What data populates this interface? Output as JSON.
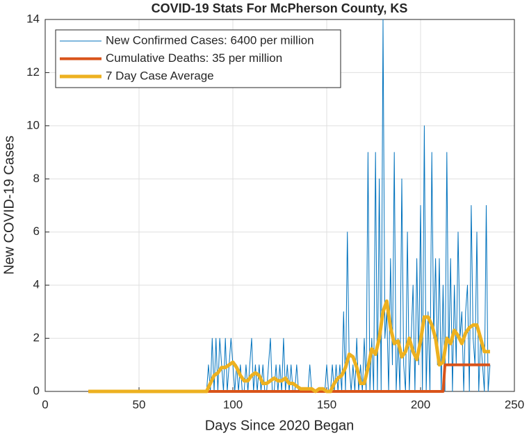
{
  "chart_data": {
    "type": "line",
    "title": "COVID-19 Stats For McPherson County, KS",
    "xlabel": "Days Since 2020 Began",
    "ylabel": "New COVID-19 Cases",
    "xlim": [
      0,
      250
    ],
    "xticks": [
      0,
      50,
      100,
      150,
      200,
      250
    ],
    "ylim": [
      0,
      14
    ],
    "yticks": [
      0,
      2,
      4,
      6,
      8,
      10,
      12,
      14
    ],
    "grid": true,
    "legend": "upper left",
    "series": [
      {
        "name": "New Confirmed Cases: 6400 per million",
        "color": "#0072BD",
        "width": 1,
        "x": [
          23,
          86,
          87,
          88,
          89,
          90,
          91,
          92,
          93,
          94,
          95,
          96,
          97,
          98,
          99,
          100,
          101,
          102,
          103,
          104,
          105,
          106,
          107,
          108,
          109,
          110,
          111,
          112,
          113,
          114,
          115,
          116,
          117,
          118,
          119,
          120,
          121,
          122,
          123,
          124,
          125,
          126,
          127,
          128,
          129,
          130,
          131,
          132,
          133,
          134,
          135,
          136,
          137,
          138,
          139,
          140,
          141,
          142,
          143,
          144,
          145,
          146,
          147,
          148,
          149,
          150,
          151,
          152,
          153,
          154,
          155,
          156,
          157,
          158,
          159,
          160,
          161,
          162,
          163,
          164,
          165,
          166,
          167,
          168,
          169,
          170,
          171,
          172,
          173,
          174,
          175,
          176,
          177,
          178,
          179,
          180,
          181,
          182,
          183,
          184,
          185,
          186,
          187,
          188,
          189,
          190,
          191,
          192,
          193,
          194,
          195,
          196,
          197,
          198,
          199,
          200,
          201,
          202,
          203,
          204,
          205,
          206,
          207,
          208,
          209,
          210,
          211,
          212,
          213,
          214,
          215,
          216,
          217,
          218,
          219,
          220,
          221,
          222,
          223,
          224,
          225,
          226,
          227,
          228,
          229,
          230,
          231,
          232,
          233,
          234,
          235,
          236,
          237
        ],
        "values": [
          0,
          0,
          1,
          0,
          2,
          0,
          2,
          0,
          2,
          1,
          0,
          2,
          0,
          1,
          2,
          1,
          0,
          1,
          0,
          1,
          0,
          0,
          1,
          0,
          1,
          2,
          0,
          1,
          0,
          1,
          0,
          1,
          0,
          0,
          1,
          2,
          0,
          0,
          1,
          0,
          1,
          0,
          2,
          0,
          1,
          0,
          1,
          0,
          0,
          1,
          0,
          0,
          0,
          0,
          0,
          0,
          1,
          0,
          0,
          0,
          0,
          0,
          0,
          0,
          0,
          1,
          0,
          0,
          1,
          0,
          1,
          0,
          1,
          0,
          3,
          0,
          6,
          1,
          0,
          1,
          0,
          2,
          0,
          1,
          0,
          2,
          0,
          9,
          0,
          2,
          0,
          9,
          0,
          8,
          0,
          14,
          2,
          3,
          0,
          5,
          1,
          9,
          0,
          2,
          0,
          8,
          1,
          0,
          6,
          0,
          2,
          4,
          0,
          5,
          1,
          7,
          0,
          10,
          0,
          3,
          0,
          9,
          2,
          5,
          1,
          5,
          0,
          4,
          0,
          9,
          1,
          5,
          0,
          4,
          1,
          6,
          2,
          3,
          0,
          3,
          4,
          0,
          7,
          2,
          1,
          6,
          0,
          2,
          1,
          0,
          7,
          0,
          1
        ]
      },
      {
        "name": "Cumulative Deaths: 35 per million",
        "color": "#D95319",
        "width": 4,
        "x": [
          23,
          212,
          213,
          237
        ],
        "values": [
          0,
          0,
          1,
          1
        ]
      },
      {
        "name": "7 Day Case Average",
        "color": "#EDB120",
        "width": 5,
        "x": [
          23,
          86,
          88,
          90,
          92,
          94,
          96,
          98,
          100,
          102,
          104,
          106,
          108,
          110,
          112,
          114,
          116,
          118,
          120,
          122,
          124,
          126,
          128,
          130,
          132,
          134,
          136,
          138,
          140,
          142,
          144,
          146,
          148,
          150,
          152,
          154,
          156,
          158,
          160,
          162,
          164,
          166,
          168,
          170,
          172,
          174,
          176,
          178,
          180,
          182,
          184,
          186,
          188,
          190,
          192,
          194,
          196,
          198,
          200,
          202,
          204,
          206,
          208,
          210,
          212,
          214,
          216,
          218,
          220,
          222,
          224,
          226,
          228,
          230,
          232,
          234,
          236,
          237
        ],
        "values": [
          0,
          0,
          0.3,
          0.6,
          0.7,
          0.9,
          0.9,
          1.0,
          1.1,
          0.9,
          0.6,
          0.4,
          0.4,
          0.6,
          0.7,
          0.6,
          0.3,
          0.3,
          0.4,
          0.5,
          0.4,
          0.4,
          0.5,
          0.3,
          0.3,
          0.2,
          0.1,
          0.1,
          0.1,
          0.1,
          0,
          0.1,
          0.1,
          0,
          0,
          0.3,
          0.5,
          0.6,
          0.9,
          1.4,
          1.3,
          0.9,
          0.3,
          0.3,
          0.9,
          1.6,
          1.4,
          2.0,
          3.0,
          3.4,
          2.4,
          1.8,
          1.9,
          1.3,
          1.5,
          2.0,
          1.5,
          1.2,
          1.9,
          2.8,
          2.8,
          2.5,
          2.0,
          1.0,
          1.1,
          2.0,
          1.8,
          2.3,
          2.1,
          1.8,
          2.2,
          2.4,
          2.5,
          2.5,
          2.0,
          1.5,
          1.5,
          1.5
        ]
      }
    ]
  }
}
